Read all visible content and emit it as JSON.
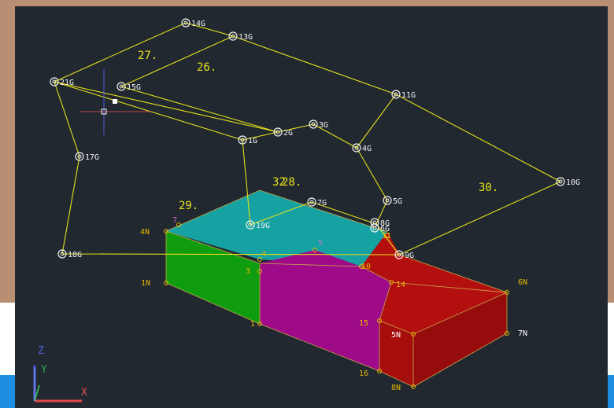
{
  "colors": {
    "background": "#212830",
    "wireframe": "#e6e01a",
    "node": "#f2f2f2",
    "vertex": "#e6b800",
    "cyan_face": "#16a2a2",
    "green_face": "#0f9c0f",
    "magenta_face": "#9e0a88",
    "red_face": "#b30f0f",
    "ucs_y": "#2fa84f",
    "ucs_z": "#4f63e0",
    "ucs_x": "#e04a4a"
  },
  "nodes": [
    {
      "label": "14G"
    },
    {
      "label": "13G"
    },
    {
      "label": "21G"
    },
    {
      "label": "15G"
    },
    {
      "label": "11G"
    },
    {
      "label": "3G"
    },
    {
      "label": "2G"
    },
    {
      "label": "1G"
    },
    {
      "label": "4G"
    },
    {
      "label": "17G"
    },
    {
      "label": "10G"
    },
    {
      "label": "5G"
    },
    {
      "label": "7G"
    },
    {
      "label": "19G"
    },
    {
      "label": "8G"
    },
    {
      "label": "6G"
    },
    {
      "label": "18G"
    },
    {
      "label": "9G"
    }
  ],
  "region_labels": [
    {
      "label": "27."
    },
    {
      "label": "26."
    },
    {
      "label": "30."
    },
    {
      "label": "29."
    },
    {
      "label": "28."
    },
    {
      "label": "32"
    }
  ],
  "box_vertices": [
    {
      "label": "4N"
    },
    {
      "label": "7"
    },
    {
      "label": "1N"
    },
    {
      "label": "3"
    },
    {
      "label": "4"
    },
    {
      "label": "5"
    },
    {
      "label": "10"
    },
    {
      "label": "11"
    },
    {
      "label": "14"
    },
    {
      "label": "15"
    },
    {
      "label": "1"
    },
    {
      "label": "16"
    },
    {
      "label": "5N"
    },
    {
      "label": "6N"
    },
    {
      "label": "7N"
    },
    {
      "label": "8N"
    }
  ],
  "ucs": {
    "x_label": "X",
    "y_label": "Y",
    "z_label": "Z"
  }
}
